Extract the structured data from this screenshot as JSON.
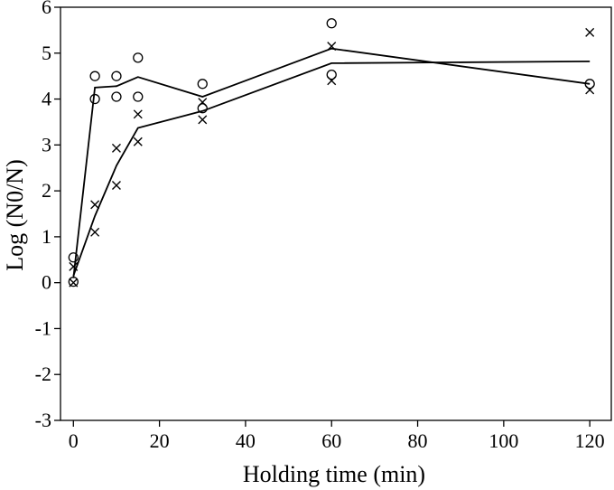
{
  "chart_data": {
    "type": "scatter",
    "title": "",
    "xlabel": "Holding time (min)",
    "ylabel": "Log (N0/N)",
    "xlim": [
      -3,
      125
    ],
    "ylim": [
      -3,
      6
    ],
    "xticks": [
      0,
      20,
      40,
      60,
      80,
      100,
      120
    ],
    "yticks": [
      -3,
      -2,
      -1,
      0,
      1,
      2,
      3,
      4,
      5,
      6
    ],
    "xtick_labels": [
      "0",
      "20",
      "40",
      "60",
      "80",
      "100",
      "120"
    ],
    "ytick_labels": [
      "-3",
      "-2",
      "-1",
      "0",
      "1",
      "2",
      "3",
      "4",
      "5",
      "6"
    ],
    "grid": false,
    "series": [
      {
        "marker": "circle",
        "points": [
          [
            0,
            0.55
          ],
          [
            0,
            0.02
          ],
          [
            5,
            4.5
          ],
          [
            5,
            4.0
          ],
          [
            10,
            4.5
          ],
          [
            10,
            4.05
          ],
          [
            15,
            4.9
          ],
          [
            15,
            4.05
          ],
          [
            30,
            4.33
          ],
          [
            30,
            3.8
          ],
          [
            60,
            5.65
          ],
          [
            60,
            4.53
          ],
          [
            120,
            4.33
          ]
        ],
        "fit": [
          [
            0,
            0.1
          ],
          [
            5,
            4.25
          ],
          [
            10,
            4.28
          ],
          [
            15,
            4.48
          ],
          [
            30,
            4.05
          ],
          [
            60,
            5.1
          ],
          [
            120,
            4.33
          ]
        ]
      },
      {
        "marker": "cross",
        "points": [
          [
            0,
            0.35
          ],
          [
            0,
            0.0
          ],
          [
            5,
            1.7
          ],
          [
            5,
            1.1
          ],
          [
            10,
            2.93
          ],
          [
            10,
            2.12
          ],
          [
            15,
            3.67
          ],
          [
            15,
            3.07
          ],
          [
            30,
            3.93
          ],
          [
            30,
            3.55
          ],
          [
            60,
            5.15
          ],
          [
            60,
            4.4
          ],
          [
            120,
            5.45
          ],
          [
            120,
            4.2
          ]
        ],
        "fit": [
          [
            0,
            0.15
          ],
          [
            5,
            1.45
          ],
          [
            10,
            2.55
          ],
          [
            15,
            3.37
          ],
          [
            30,
            3.74
          ],
          [
            60,
            4.78
          ],
          [
            120,
            4.82
          ]
        ]
      }
    ]
  }
}
